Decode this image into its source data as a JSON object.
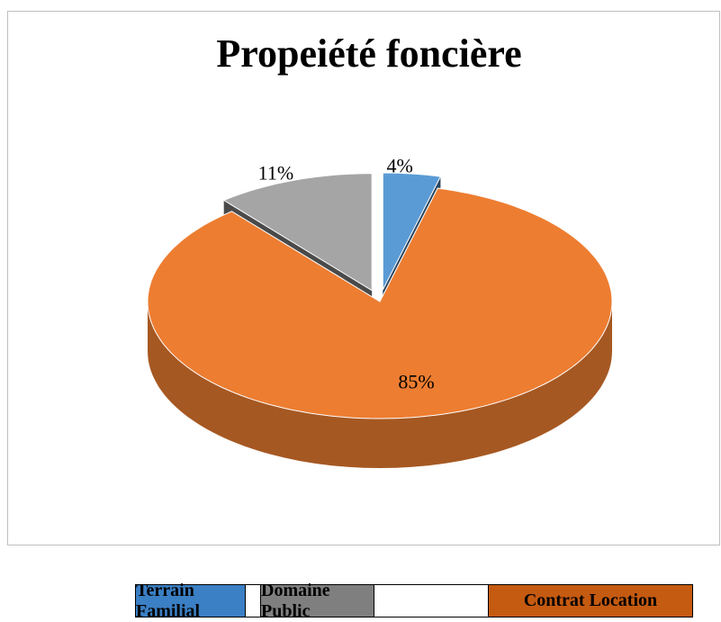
{
  "chart_data": {
    "type": "pie3d",
    "title": "Propeiété foncière",
    "categories": [
      "Terrain Familial",
      "Domaine Public",
      "Contrat Location"
    ],
    "values": [
      4,
      11,
      85
    ],
    "value_labels": [
      "4%",
      "11%",
      "85%"
    ],
    "colors": [
      "#5b9bd5",
      "#a5a5a5",
      "#ed7d31"
    ],
    "legend_colors": [
      "#3b7fc4",
      "#7f7f7f",
      "#c55a11"
    ],
    "exploded": [
      true,
      true,
      false
    ]
  }
}
